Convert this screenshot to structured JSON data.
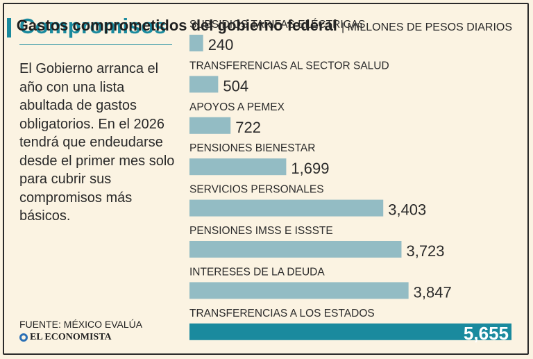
{
  "header": {
    "title": "Compromisos",
    "intro": "El Gobierno arranca el año con una lista abultada de gastos obligatorios. En el 2026 tendrá que endeudarse desde el primer mes solo para cubrir sus compromisos más básicos."
  },
  "footer": {
    "source": "FUENTE: MÉXICO EVALÚA",
    "brand": "EL ECONOMISTA"
  },
  "colors": {
    "accent": "#1a8a9e",
    "bar": "#93bcc4",
    "bar_highlight": "#1a8a9e",
    "background": "#fbf3e2"
  },
  "chart_data": {
    "type": "bar",
    "orientation": "horizontal",
    "title": "Gastos comprometidos del gobierno federal",
    "units": "| MILLONES DE PESOS DIARIOS",
    "categories": [
      "SUBSIDIOS TARIFAS ELÉCTRICAS",
      "TRANSFERENCIAS AL SECTOR SALUD",
      "APOYOS A PEMEX",
      "PENSIONES BIENESTAR",
      "SERVICIOS PERSONALES",
      "PENSIONES IMSS E ISSSTE",
      "INTERESES DE LA DEUDA",
      "TRANSFERENCIAS A LOS ESTADOS"
    ],
    "values": [
      240,
      504,
      722,
      1699,
      3403,
      3723,
      3847,
      5655
    ],
    "value_labels": [
      "240",
      "504",
      "722",
      "1,699",
      "3,403",
      "3,723",
      "3,847",
      "5,655"
    ],
    "highlight_index": 7,
    "xlim": [
      0,
      5655
    ]
  }
}
